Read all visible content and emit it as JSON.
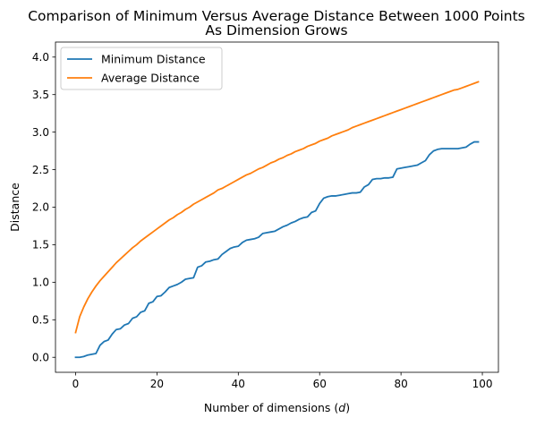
{
  "chart_data": {
    "type": "line",
    "title_line1": "Comparison of Minimum Versus Average Distance Between 1000 Points",
    "title_line2": "As Dimension Grows",
    "xlabel": "Number of dimensions (d)",
    "xlabel_prefix": "Number of dimensions (",
    "xlabel_var": "d",
    "xlabel_suffix": ")",
    "ylabel": "Distance",
    "xlim": [
      -4.95,
      103.95
    ],
    "ylim": [
      -0.2,
      4.2
    ],
    "x_ticks": [
      0,
      20,
      40,
      60,
      80,
      100
    ],
    "x_tick_labels": [
      "0",
      "20",
      "40",
      "60",
      "80",
      "100"
    ],
    "y_ticks": [
      0.0,
      0.5,
      1.0,
      1.5,
      2.0,
      2.5,
      3.0,
      3.5,
      4.0
    ],
    "y_tick_labels": [
      "0.0",
      "0.5",
      "1.0",
      "1.5",
      "2.0",
      "2.5",
      "3.0",
      "3.5",
      "4.0"
    ],
    "grid": false,
    "legend_position": "upper-left",
    "x": [
      0,
      1,
      2,
      3,
      4,
      5,
      6,
      7,
      8,
      9,
      10,
      11,
      12,
      13,
      14,
      15,
      16,
      17,
      18,
      19,
      20,
      21,
      22,
      23,
      24,
      25,
      26,
      27,
      28,
      29,
      30,
      31,
      32,
      33,
      34,
      35,
      36,
      37,
      38,
      39,
      40,
      41,
      42,
      43,
      44,
      45,
      46,
      47,
      48,
      49,
      50,
      51,
      52,
      53,
      54,
      55,
      56,
      57,
      58,
      59,
      60,
      61,
      62,
      63,
      64,
      65,
      66,
      67,
      68,
      69,
      70,
      71,
      72,
      73,
      74,
      75,
      76,
      77,
      78,
      79,
      80,
      81,
      82,
      83,
      84,
      85,
      86,
      87,
      88,
      89,
      90,
      91,
      92,
      93,
      94,
      95,
      96,
      97,
      98,
      99
    ],
    "series": [
      {
        "name": "Minimum Distance",
        "color": "#1f77b4",
        "values": [
          0.0,
          0.0,
          0.01,
          0.03,
          0.04,
          0.05,
          0.16,
          0.21,
          0.23,
          0.31,
          0.37,
          0.38,
          0.43,
          0.45,
          0.52,
          0.54,
          0.6,
          0.62,
          0.72,
          0.74,
          0.81,
          0.82,
          0.87,
          0.93,
          0.95,
          0.97,
          1.0,
          1.04,
          1.05,
          1.06,
          1.2,
          1.22,
          1.27,
          1.28,
          1.3,
          1.31,
          1.37,
          1.41,
          1.45,
          1.47,
          1.48,
          1.53,
          1.56,
          1.57,
          1.58,
          1.6,
          1.65,
          1.66,
          1.67,
          1.68,
          1.71,
          1.74,
          1.76,
          1.79,
          1.81,
          1.84,
          1.86,
          1.87,
          1.93,
          1.95,
          2.05,
          2.12,
          2.14,
          2.15,
          2.15,
          2.16,
          2.17,
          2.18,
          2.19,
          2.19,
          2.2,
          2.27,
          2.3,
          2.37,
          2.38,
          2.38,
          2.39,
          2.39,
          2.4,
          2.51,
          2.52,
          2.53,
          2.54,
          2.55,
          2.56,
          2.59,
          2.62,
          2.7,
          2.75,
          2.77,
          2.78,
          2.78,
          2.78,
          2.78,
          2.78,
          2.79,
          2.8,
          2.84,
          2.87,
          2.87
        ]
      },
      {
        "name": "Average Distance",
        "color": "#ff7f0e",
        "values": [
          0.33,
          0.54,
          0.67,
          0.78,
          0.87,
          0.95,
          1.02,
          1.08,
          1.14,
          1.2,
          1.26,
          1.31,
          1.36,
          1.41,
          1.46,
          1.5,
          1.55,
          1.59,
          1.63,
          1.67,
          1.71,
          1.75,
          1.79,
          1.83,
          1.86,
          1.9,
          1.93,
          1.97,
          2.0,
          2.04,
          2.07,
          2.1,
          2.13,
          2.16,
          2.19,
          2.23,
          2.25,
          2.28,
          2.31,
          2.34,
          2.37,
          2.4,
          2.43,
          2.45,
          2.48,
          2.51,
          2.53,
          2.56,
          2.59,
          2.61,
          2.64,
          2.66,
          2.69,
          2.71,
          2.74,
          2.76,
          2.78,
          2.81,
          2.83,
          2.85,
          2.88,
          2.9,
          2.92,
          2.95,
          2.97,
          2.99,
          3.01,
          3.03,
          3.06,
          3.08,
          3.1,
          3.12,
          3.14,
          3.16,
          3.18,
          3.2,
          3.22,
          3.24,
          3.26,
          3.28,
          3.3,
          3.32,
          3.34,
          3.36,
          3.38,
          3.4,
          3.42,
          3.44,
          3.46,
          3.48,
          3.5,
          3.52,
          3.54,
          3.56,
          3.57,
          3.59,
          3.61,
          3.63,
          3.65,
          3.67
        ]
      }
    ]
  }
}
